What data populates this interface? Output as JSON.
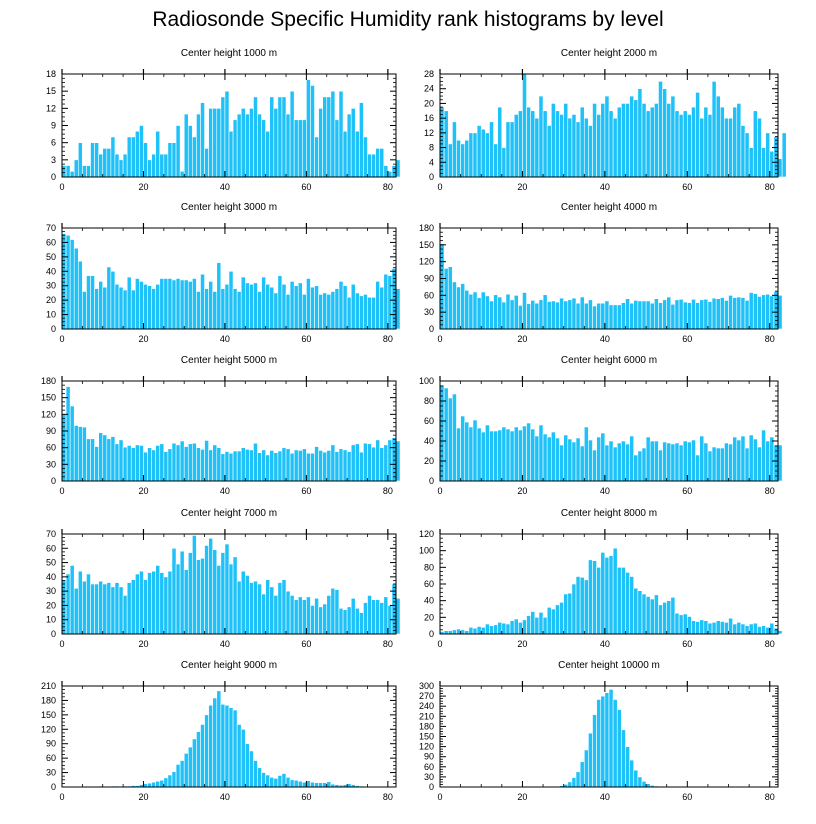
{
  "page": {
    "title": "Radiosonde Specific Humidity rank histograms by level"
  },
  "style": {
    "bar_color": "#1ec1f8",
    "bar_edge_color": "#ffffff",
    "axis_color": "#000000"
  },
  "chart_data": [
    {
      "type": "bar",
      "title": "Center height 1000 m",
      "xlim": [
        0,
        82
      ],
      "ylim": [
        0,
        18
      ],
      "xticks": [
        0,
        20,
        40,
        60,
        80
      ],
      "yticks": [
        0,
        3,
        6,
        9,
        12,
        15,
        18
      ],
      "grid": false,
      "legend": "none",
      "values": [
        2,
        2,
        1,
        3,
        6,
        2,
        2,
        6,
        6,
        4,
        5,
        5,
        7,
        4,
        3,
        4,
        7,
        7,
        8,
        9,
        6,
        3,
        4,
        8,
        4,
        4,
        6,
        6,
        9,
        1,
        11,
        9,
        7,
        11,
        13,
        5,
        12,
        12,
        12,
        14,
        15,
        8,
        10,
        11,
        12,
        11,
        12,
        14,
        11,
        10,
        8,
        14,
        12,
        14,
        14,
        11,
        15,
        10,
        10,
        10,
        17,
        16,
        7,
        12,
        14,
        14,
        15,
        10,
        15,
        8,
        11,
        12,
        8,
        13,
        7,
        4,
        4,
        5,
        5,
        2,
        1,
        2,
        3
      ]
    },
    {
      "type": "bar",
      "title": "Center height 2000 m",
      "xlim": [
        0,
        82
      ],
      "ylim": [
        0,
        28
      ],
      "xticks": [
        0,
        20,
        40,
        60,
        80
      ],
      "yticks": [
        0,
        4,
        8,
        12,
        16,
        20,
        24,
        28
      ],
      "grid": false,
      "legend": "none",
      "values": [
        19,
        18,
        9,
        15,
        10,
        9,
        10,
        12,
        12,
        14,
        13,
        12,
        15,
        9,
        19,
        8,
        15,
        15,
        17,
        18,
        28,
        19,
        18,
        16,
        22,
        18,
        14,
        20,
        18,
        17,
        20,
        16,
        17,
        15,
        19,
        16,
        14,
        20,
        17,
        20,
        22,
        18,
        16,
        19,
        20,
        20,
        22,
        21,
        24,
        20,
        18,
        19,
        20,
        26,
        24,
        20,
        22,
        18,
        17,
        18,
        17,
        19,
        23,
        16,
        19,
        17,
        26,
        22,
        19,
        16,
        16,
        19,
        20,
        14,
        12,
        8,
        18,
        16,
        8,
        12,
        7,
        11,
        5,
        12
      ]
    },
    {
      "type": "bar",
      "title": "Center height 3000 m",
      "xlim": [
        0,
        82
      ],
      "ylim": [
        0,
        70
      ],
      "xticks": [
        0,
        20,
        40,
        60,
        80
      ],
      "yticks": [
        0,
        10,
        20,
        30,
        40,
        50,
        60,
        70
      ],
      "grid": false,
      "legend": "none",
      "values": [
        66,
        65,
        62,
        56,
        47,
        26,
        37,
        37,
        28,
        33,
        29,
        43,
        40,
        31,
        29,
        27,
        36,
        27,
        35,
        33,
        31,
        30,
        28,
        31,
        35,
        35,
        35,
        34,
        35,
        34,
        34,
        33,
        35,
        26,
        38,
        28,
        33,
        26,
        46,
        28,
        31,
        40,
        28,
        26,
        36,
        32,
        31,
        32,
        26,
        36,
        31,
        29,
        25,
        37,
        31,
        24,
        33,
        30,
        32,
        24,
        35,
        29,
        30,
        24,
        25,
        24,
        26,
        28,
        33,
        30,
        22,
        31,
        25,
        23,
        24,
        22,
        22,
        33,
        29,
        38,
        37,
        42,
        28
      ]
    },
    {
      "type": "bar",
      "title": "Center height 4000 m",
      "xlim": [
        0,
        82
      ],
      "ylim": [
        0,
        180
      ],
      "xticks": [
        0,
        20,
        40,
        60,
        80
      ],
      "yticks": [
        0,
        30,
        60,
        90,
        120,
        150,
        180
      ],
      "grid": false,
      "legend": "none",
      "values": [
        152,
        108,
        111,
        84,
        75,
        81,
        69,
        62,
        66,
        56,
        66,
        59,
        50,
        61,
        57,
        48,
        62,
        52,
        60,
        42,
        65,
        45,
        51,
        46,
        52,
        61,
        49,
        50,
        48,
        55,
        50,
        52,
        55,
        46,
        57,
        46,
        52,
        41,
        46,
        46,
        50,
        43,
        43,
        43,
        47,
        54,
        46,
        51,
        50,
        50,
        50,
        46,
        54,
        47,
        52,
        57,
        44,
        52,
        53,
        48,
        47,
        53,
        47,
        52,
        53,
        49,
        55,
        54,
        56,
        51,
        60,
        56,
        57,
        56,
        51,
        65,
        63,
        58,
        61,
        62,
        59,
        67,
        60
      ]
    },
    {
      "type": "bar",
      "title": "Center height 5000 m",
      "xlim": [
        0,
        82
      ],
      "ylim": [
        0,
        180
      ],
      "xticks": [
        0,
        20,
        40,
        60,
        80
      ],
      "yticks": [
        0,
        30,
        60,
        90,
        120,
        150,
        180
      ],
      "grid": false,
      "legend": "none",
      "values": [
        120,
        170,
        135,
        100,
        98,
        97,
        76,
        76,
        62,
        87,
        83,
        76,
        80,
        67,
        74,
        61,
        64,
        60,
        65,
        64,
        52,
        60,
        56,
        64,
        67,
        53,
        58,
        68,
        65,
        72,
        62,
        67,
        68,
        60,
        57,
        73,
        56,
        65,
        60,
        49,
        53,
        50,
        54,
        54,
        60,
        57,
        56,
        68,
        51,
        56,
        47,
        55,
        51,
        54,
        60,
        58,
        50,
        56,
        55,
        58,
        50,
        50,
        62,
        55,
        52,
        55,
        65,
        53,
        58,
        56,
        53,
        65,
        67,
        52,
        68,
        67,
        61,
        74,
        60,
        65,
        74,
        78,
        72
      ]
    },
    {
      "type": "bar",
      "title": "Center height 6000 m",
      "xlim": [
        0,
        82
      ],
      "ylim": [
        0,
        100
      ],
      "xticks": [
        0,
        20,
        40,
        60,
        80
      ],
      "yticks": [
        0,
        20,
        40,
        60,
        80,
        100
      ],
      "grid": false,
      "legend": "none",
      "values": [
        96,
        93,
        83,
        87,
        53,
        65,
        59,
        54,
        61,
        53,
        49,
        56,
        50,
        50,
        51,
        54,
        52,
        50,
        54,
        51,
        55,
        58,
        52,
        45,
        56,
        47,
        44,
        49,
        43,
        36,
        46,
        42,
        39,
        43,
        35,
        54,
        41,
        31,
        44,
        48,
        36,
        40,
        34,
        38,
        40,
        37,
        45,
        26,
        30,
        33,
        44,
        40,
        40,
        31,
        39,
        38,
        37,
        38,
        36,
        40,
        39,
        41,
        26,
        45,
        38,
        30,
        34,
        33,
        33,
        38,
        37,
        44,
        41,
        45,
        33,
        46,
        42,
        34,
        51,
        40,
        44,
        36,
        36
      ]
    },
    {
      "type": "bar",
      "title": "Center height 7000 m",
      "xlim": [
        0,
        82
      ],
      "ylim": [
        0,
        70
      ],
      "xticks": [
        0,
        20,
        40,
        60,
        80
      ],
      "yticks": [
        0,
        10,
        20,
        30,
        40,
        50,
        60,
        70
      ],
      "grid": false,
      "legend": "none",
      "values": [
        38,
        42,
        48,
        32,
        44,
        37,
        42,
        35,
        35,
        37,
        35,
        36,
        33,
        36,
        33,
        27,
        36,
        38,
        42,
        44,
        38,
        43,
        44,
        48,
        43,
        40,
        44,
        60,
        49,
        58,
        45,
        57,
        69,
        52,
        53,
        62,
        67,
        59,
        48,
        57,
        63,
        49,
        54,
        37,
        44,
        41,
        36,
        37,
        35,
        28,
        38,
        33,
        27,
        36,
        38,
        30,
        27,
        24,
        26,
        24,
        26,
        20,
        25,
        19,
        21,
        27,
        32,
        31,
        18,
        17,
        19,
        25,
        18,
        15,
        22,
        27,
        24,
        24,
        22,
        26,
        20,
        35,
        25
      ]
    },
    {
      "type": "bar",
      "title": "Center height 8000 m",
      "xlim": [
        0,
        82
      ],
      "ylim": [
        0,
        120
      ],
      "xticks": [
        0,
        20,
        40,
        60,
        80
      ],
      "yticks": [
        0,
        20,
        40,
        60,
        80,
        100,
        120
      ],
      "grid": false,
      "legend": "none",
      "values": [
        3,
        4,
        4,
        5,
        6,
        5,
        4,
        8,
        7,
        9,
        8,
        12,
        10,
        11,
        14,
        13,
        12,
        16,
        18,
        14,
        17,
        22,
        27,
        20,
        26,
        20,
        32,
        30,
        35,
        38,
        48,
        49,
        60,
        69,
        68,
        65,
        89,
        88,
        80,
        98,
        92,
        94,
        103,
        80,
        80,
        74,
        69,
        55,
        52,
        48,
        45,
        42,
        47,
        35,
        38,
        40,
        44,
        25,
        23,
        24,
        21,
        16,
        15,
        17,
        16,
        13,
        14,
        16,
        15,
        14,
        19,
        12,
        14,
        12,
        10,
        12,
        13,
        9,
        10,
        8,
        13,
        7,
        4
      ]
    },
    {
      "type": "bar",
      "title": "Center height 9000 m",
      "xlim": [
        0,
        82
      ],
      "ylim": [
        0,
        210
      ],
      "xticks": [
        0,
        20,
        40,
        60,
        80
      ],
      "yticks": [
        0,
        30,
        60,
        90,
        120,
        150,
        180,
        210
      ],
      "grid": false,
      "legend": "none",
      "values": [
        0,
        0,
        0,
        0,
        0,
        0,
        0,
        0,
        1,
        2,
        1,
        1,
        2,
        2,
        1,
        2,
        2,
        3,
        3,
        5,
        7,
        8,
        10,
        12,
        14,
        19,
        25,
        32,
        47,
        55,
        70,
        83,
        100,
        115,
        130,
        150,
        170,
        185,
        200,
        172,
        170,
        165,
        160,
        130,
        120,
        90,
        75,
        55,
        40,
        30,
        25,
        20,
        18,
        24,
        28,
        20,
        15,
        14,
        12,
        10,
        13,
        10,
        9,
        9,
        9,
        11,
        6,
        5,
        4,
        5,
        7,
        5,
        3,
        2,
        1,
        1,
        1,
        0,
        0,
        0,
        0,
        0,
        0
      ]
    },
    {
      "type": "bar",
      "title": "Center height 10000 m",
      "xlim": [
        0,
        82
      ],
      "ylim": [
        0,
        300
      ],
      "xticks": [
        0,
        20,
        40,
        60,
        80
      ],
      "yticks": [
        0,
        30,
        60,
        90,
        120,
        150,
        180,
        210,
        240,
        270,
        300
      ],
      "grid": false,
      "legend": "none",
      "values": [
        0,
        0,
        0,
        0,
        0,
        0,
        0,
        0,
        0,
        0,
        0,
        0,
        0,
        0,
        0,
        0,
        0,
        0,
        0,
        0,
        0,
        0,
        0,
        0,
        0,
        0,
        0,
        1,
        2,
        4,
        8,
        15,
        28,
        45,
        75,
        110,
        160,
        215,
        260,
        270,
        280,
        290,
        260,
        230,
        170,
        120,
        80,
        50,
        30,
        17,
        10,
        5,
        3,
        2,
        1,
        1,
        0,
        0,
        0,
        0,
        0,
        0,
        0,
        0,
        0,
        0,
        0,
        0,
        0,
        0,
        0,
        0,
        0,
        0,
        0,
        0,
        0,
        0,
        0,
        0,
        0,
        0,
        0
      ]
    }
  ]
}
